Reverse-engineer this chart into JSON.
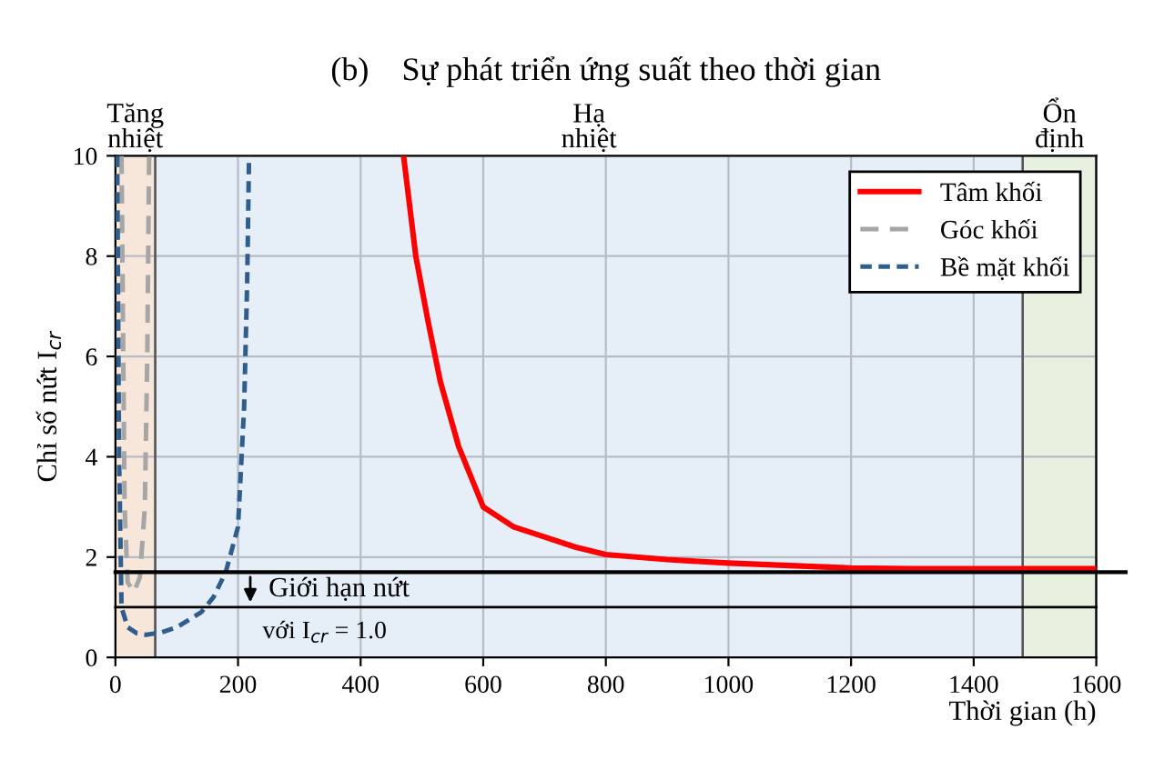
{
  "chart_data": {
    "type": "line",
    "title": "(b)    Sự phát triển ứng suất theo thời gian",
    "xlabel": "Thời gian (h)",
    "ylabel": "Chỉ số nứt I$_{cr}$",
    "xlim": [
      0,
      1600
    ],
    "ylim": [
      0,
      10
    ],
    "xticks": [
      0,
      200,
      400,
      600,
      800,
      1000,
      1200,
      1400,
      1600
    ],
    "yticks": [
      0,
      2,
      4,
      6,
      8,
      10
    ],
    "grid": true,
    "legend": "top right",
    "series": [
      {
        "name": "Tâm khối",
        "color": "#ff0000",
        "line_style": "solid",
        "x": [
          470,
          490,
          510,
          530,
          560,
          600,
          650,
          700,
          750,
          800,
          900,
          1000,
          1100,
          1200,
          1300,
          1400,
          1500,
          1600
        ],
        "values": [
          10,
          8.0,
          6.7,
          5.5,
          4.2,
          3.0,
          2.6,
          2.4,
          2.2,
          2.05,
          1.95,
          1.88,
          1.83,
          1.78,
          1.77,
          1.77,
          1.77,
          1.77
        ]
      },
      {
        "name": "Góc khối",
        "color": "#a6a6a6",
        "line_style": "dashed",
        "x": [
          10,
          15,
          20,
          30,
          40,
          48,
          52,
          55
        ],
        "values": [
          10,
          3,
          1.5,
          1.3,
          1.6,
          3,
          6,
          10
        ]
      },
      {
        "name": "Bề mặt khối",
        "color": "#2f5d8c",
        "line_style": "dotted",
        "x": [
          3,
          6,
          10,
          20,
          35,
          50,
          75,
          100,
          140,
          160,
          180,
          200,
          210,
          215,
          218
        ],
        "values": [
          10,
          4,
          1.0,
          0.6,
          0.48,
          0.45,
          0.5,
          0.6,
          0.9,
          1.2,
          1.7,
          2.6,
          5,
          7.5,
          10
        ]
      }
    ],
    "bands": [
      {
        "axis": "x",
        "from": 0,
        "to": 65,
        "label": "Tăng\nnhiệt",
        "color": "#f7e6da"
      },
      {
        "axis": "x",
        "from": 65,
        "to": 1480,
        "label": "Hạ\nnhiệt",
        "color": "#e6eef8"
      },
      {
        "axis": "x",
        "from": 1480,
        "to": 1600,
        "label": "Ổn\nđịnh",
        "color": "#e8f0e0"
      }
    ],
    "ref_lines": [
      {
        "axis": "y",
        "value": 1.7,
        "color": "#000000",
        "line_style": "solid"
      },
      {
        "axis": "y",
        "value": 1.0,
        "color": "#000000",
        "line_style": "solid"
      }
    ],
    "annotations": [
      "Giới hạn nứt",
      "với I$_{cr}$ = 1.0"
    ]
  }
}
